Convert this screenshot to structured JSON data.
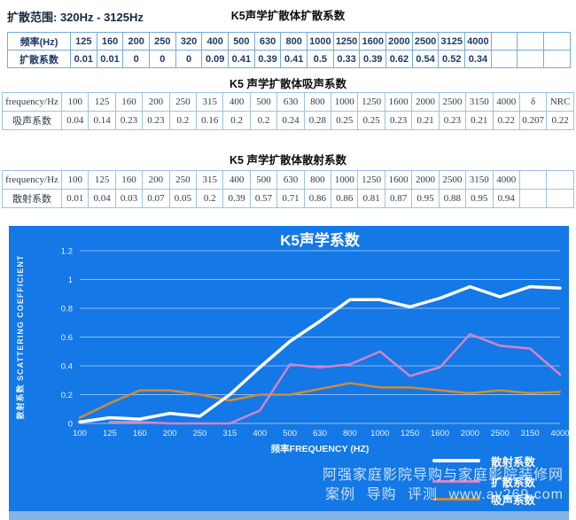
{
  "page": {
    "range_label": "扩散范围: 320Hz - 3125Hz"
  },
  "tables": [
    {
      "title": "K5声学扩散体扩散系数",
      "row_headers": [
        "频率(Hz)",
        "扩散系数"
      ],
      "columns": [
        "125",
        "160",
        "200",
        "250",
        "320",
        "400",
        "500",
        "630",
        "800",
        "1000",
        "1250",
        "1600",
        "2000",
        "2500",
        "3125",
        "4000"
      ],
      "values": [
        "0.01",
        "0.01",
        "0",
        "0",
        "0",
        "0.09",
        "0.41",
        "0.39",
        "0.41",
        "0.5",
        "0.33",
        "0.39",
        "0.62",
        "0.54",
        "0.52",
        "0.34"
      ],
      "trailing_empty": 3
    },
    {
      "title": "K5 声学扩散体吸声系数",
      "row_headers": [
        "frequency/Hz",
        "吸声系数"
      ],
      "columns": [
        "100",
        "125",
        "160",
        "200",
        "250",
        "315",
        "400",
        "500",
        "630",
        "800",
        "1000",
        "1250",
        "1600",
        "2000",
        "2500",
        "3150",
        "4000",
        "δ",
        "NRC"
      ],
      "values": [
        "0.04",
        "0.14",
        "0.23",
        "0.23",
        "0.2",
        "0.16",
        "0.2",
        "0.2",
        "0.24",
        "0.28",
        "0.25",
        "0.25",
        "0.23",
        "0.21",
        "0.23",
        "0.21",
        "0.22",
        "0.207",
        "0.22"
      ],
      "trailing_empty": 0
    },
    {
      "title": "K5 声学扩散体散射系数",
      "row_headers": [
        "frequency/Hz",
        "散射系数"
      ],
      "columns": [
        "100",
        "125",
        "160",
        "200",
        "250",
        "315",
        "400",
        "500",
        "630",
        "800",
        "1000",
        "1250",
        "1600",
        "2000",
        "2500",
        "3150",
        "4000"
      ],
      "values": [
        "0.01",
        "0.04",
        "0.03",
        "0.07",
        "0.05",
        "0.2",
        "0.39",
        "0.57",
        "0.71",
        "0.86",
        "0.86",
        "0.81",
        "0.87",
        "0.95",
        "0.88",
        "0.95",
        "0.94"
      ],
      "trailing_empty": 2
    }
  ],
  "chart_data": {
    "type": "line",
    "title": "K5声学系数",
    "xlabel": "频率FREQUENCY (HZ)",
    "ylabel": "散射系数 SCATTERING COEFFICIENT",
    "ylim": [
      0,
      1.2
    ],
    "yticks": [
      0,
      0.2,
      0.4,
      0.6,
      0.8,
      1,
      1.2
    ],
    "grid": true,
    "legend_position": "bottom-right",
    "background": "#1478e6",
    "categories": [
      "100",
      "125",
      "160",
      "200",
      "250",
      "315",
      "400",
      "500",
      "630",
      "800",
      "1000",
      "1250",
      "1600",
      "2000",
      "2500",
      "3150",
      "4000"
    ],
    "series": [
      {
        "name": "散射系数",
        "color": "#ffffff",
        "width": 3.5,
        "x_start_index": 0,
        "values": [
          0.01,
          0.04,
          0.03,
          0.07,
          0.05,
          0.2,
          0.39,
          0.57,
          0.71,
          0.86,
          0.86,
          0.81,
          0.87,
          0.95,
          0.88,
          0.95,
          0.94
        ]
      },
      {
        "name": "扩散系数",
        "color": "#d683c6",
        "width": 2.5,
        "x_start_index": 1,
        "values": [
          0.01,
          0.01,
          0,
          0,
          0,
          0.09,
          0.41,
          0.39,
          0.41,
          0.5,
          0.33,
          0.39,
          0.62,
          0.54,
          0.52,
          0.34
        ]
      },
      {
        "name": "吸声系数",
        "color": "#ce8b35",
        "width": 2.5,
        "x_start_index": 0,
        "values": [
          0.04,
          0.14,
          0.23,
          0.23,
          0.2,
          0.16,
          0.2,
          0.2,
          0.24,
          0.28,
          0.25,
          0.25,
          0.23,
          0.21,
          0.23,
          0.21,
          0.22
        ]
      }
    ]
  },
  "watermark": {
    "line1": "阿强家庭影院导购与家庭影院装修网",
    "line2": "案例 导购 评测 www.av269.com"
  }
}
